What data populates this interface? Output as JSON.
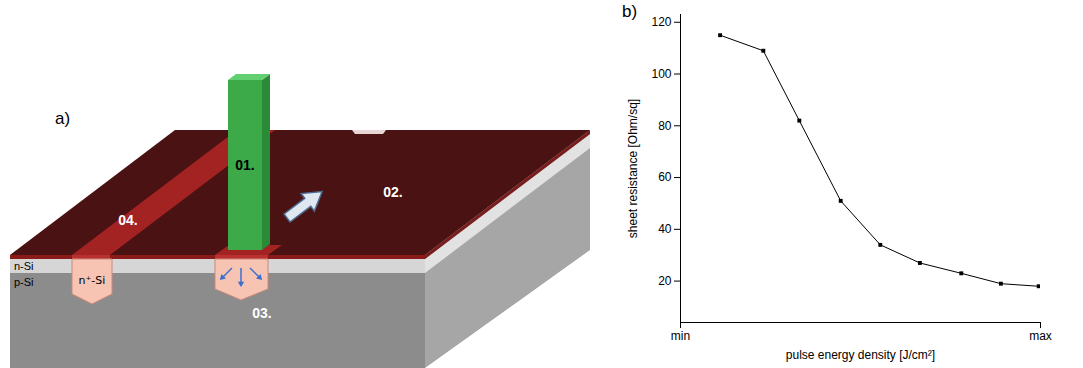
{
  "diagram": {
    "label": "a)",
    "beam": "01.",
    "layer": "02.",
    "doped_region": "03.",
    "stripe": "04.",
    "n_si": "n-Si",
    "p_si": "p-Si",
    "n_plus_si": "n⁺-Si"
  },
  "chart_label": "b)",
  "chart_data": {
    "type": "line",
    "x_label": "pulse energy density [J/cm²]",
    "y_label": "sheet resistance [Ohm/sq]",
    "x": [
      11,
      23,
      33,
      44.5,
      55.5,
      66.5,
      78,
      89,
      99.5
    ],
    "values": [
      115,
      109,
      82,
      51,
      34,
      27,
      23,
      19,
      18
    ],
    "color": "#000000",
    "marker": "square",
    "line_style": "solid",
    "xlim": [
      0,
      100
    ],
    "xticks": [
      {
        "value": 0,
        "label": "min"
      },
      {
        "value": 100,
        "label": "max"
      }
    ],
    "ylim": [
      4,
      123
    ],
    "yticks": [
      20,
      40,
      60,
      80,
      100,
      120
    ],
    "grid": false
  }
}
